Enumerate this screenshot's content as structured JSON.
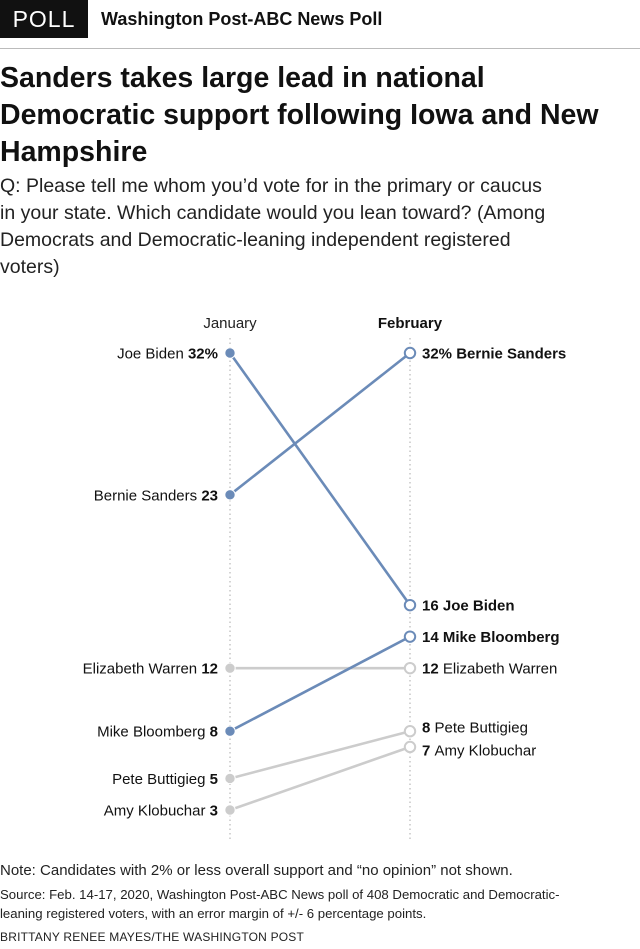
{
  "header": {
    "badge": "POLL",
    "poll_name": "Washington Post-ABC News Poll"
  },
  "title": "Sanders takes large lead in national Democratic support following Iowa and New Hampshire",
  "question": "Q: Please tell me whom you’d vote for in the primary or caucus in your state. Which candidate would you lean toward? (Among Democrats and Democratic-leaning independent registered voters)",
  "colors": {
    "highlight": "#6b8bb8",
    "muted": "#cccccc",
    "axis": "#aaaaaa"
  },
  "chart_data": {
    "type": "slope",
    "title": "Sanders takes large lead in national Democratic support following Iowa and New Hampshire",
    "x": [
      "January",
      "February"
    ],
    "unit": "%",
    "ylim": [
      0,
      35
    ],
    "series": [
      {
        "name": "Joe Biden",
        "values": [
          32,
          16
        ],
        "highlight": true,
        "jan_label": "32%",
        "feb_label": "16",
        "feb_bold": true
      },
      {
        "name": "Bernie Sanders",
        "values": [
          23,
          32
        ],
        "highlight": true,
        "jan_label": "23",
        "feb_label": "32%",
        "feb_bold": true
      },
      {
        "name": "Mike Bloomberg",
        "values": [
          8,
          14
        ],
        "highlight": true,
        "jan_label": "8",
        "feb_label": "14",
        "feb_bold": true
      },
      {
        "name": "Elizabeth Warren",
        "values": [
          12,
          12
        ],
        "highlight": false,
        "jan_label": "12",
        "feb_label": "12",
        "feb_bold": false
      },
      {
        "name": "Pete Buttigieg",
        "values": [
          5,
          8
        ],
        "highlight": false,
        "jan_label": "5",
        "feb_label": "8",
        "feb_bold": false
      },
      {
        "name": "Amy Klobuchar",
        "values": [
          3,
          7
        ],
        "highlight": false,
        "jan_label": "3",
        "feb_label": "7",
        "feb_bold": false
      }
    ]
  },
  "footer": {
    "note": "Note: Candidates with 2% or less overall support and “no opinion” not shown.",
    "source": "Source: Feb. 14-17, 2020, Washington Post-ABC News poll of 408 Democratic and Democratic-leaning registered voters, with an error margin of +/- 6 percentage points.",
    "credit": "BRITTANY RENEE MAYES/THE WASHINGTON POST"
  }
}
